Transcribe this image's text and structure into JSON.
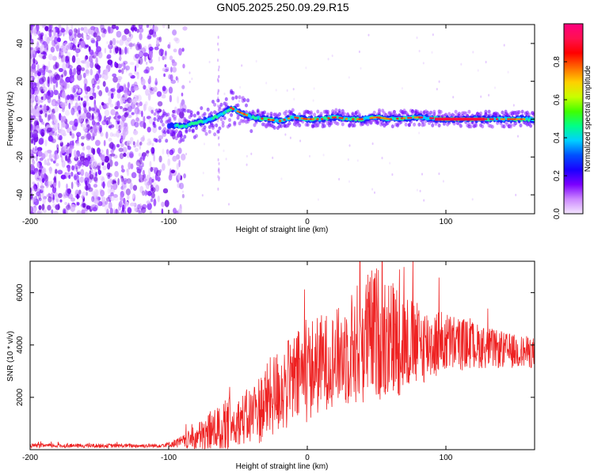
{
  "title": "GN05.2025.250.09.29.R15",
  "chart_data": [
    {
      "type": "heatmap",
      "name": "spectrogram",
      "xlabel": "Height of straight line (km)",
      "ylabel": "Frequency (Hz)",
      "xlim": [
        -200,
        164
      ],
      "ylim": [
        -50,
        50
      ],
      "xticks": [
        -200,
        -100,
        0,
        100
      ],
      "yticks": [
        -40,
        -20,
        0,
        20,
        40
      ],
      "colorbar": {
        "label": "Normalized spectral amplitude",
        "range": [
          0,
          1
        ],
        "ticks": [
          "0.0",
          "0.2",
          "0.4",
          "0.6",
          "0.8"
        ],
        "tick_values": [
          0.0,
          0.2,
          0.4,
          0.6,
          0.8
        ],
        "colors": [
          "#f4e6ff",
          "#cc88ff",
          "#7b00ff",
          "#1a00ff",
          "#0050ff",
          "#00d0ff",
          "#00ff88",
          "#40ff00",
          "#c8ff00",
          "#ffd000",
          "#ff6a00",
          "#ff0000",
          "#ff1050",
          "#ff007f"
        ]
      },
      "signal_track": {
        "description": "frequency centroid vs height",
        "x": [
          -100,
          -90,
          -80,
          -70,
          -60,
          -55,
          -50,
          -40,
          -30,
          -20,
          -10,
          0,
          10,
          20,
          30,
          40,
          50,
          60,
          80,
          100,
          120,
          140,
          164
        ],
        "y": [
          -3,
          -4,
          -2,
          0,
          3,
          6,
          4,
          1,
          0,
          -1,
          1,
          0,
          0,
          1,
          0,
          0,
          1,
          0,
          1,
          0,
          0,
          0,
          0
        ]
      }
    },
    {
      "type": "line",
      "name": "snr",
      "xlabel": "Height of straight line (km)",
      "ylabel": "SNR (10 * v/v)",
      "xlim": [
        -200,
        164
      ],
      "ylim": [
        0,
        7200
      ],
      "xticks": [
        -200,
        -100,
        0,
        100
      ],
      "yticks": [
        2000,
        4000,
        6000
      ],
      "color": "#ee2222",
      "envelope": {
        "x": [
          -200,
          -110,
          -100,
          -90,
          -80,
          -70,
          -60,
          -50,
          -40,
          -30,
          -20,
          -10,
          0,
          10,
          20,
          30,
          40,
          50,
          60,
          70,
          80,
          100,
          120,
          140,
          164
        ],
        "mean": [
          150,
          150,
          200,
          300,
          450,
          700,
          900,
          1100,
          1300,
          1800,
          2300,
          2600,
          3000,
          3300,
          3500,
          3800,
          4200,
          4500,
          4300,
          4100,
          4000,
          4100,
          4000,
          3800,
          3700
        ],
        "amplitude": [
          80,
          80,
          100,
          250,
          500,
          900,
          1000,
          900,
          1200,
          1500,
          1700,
          1800,
          2000,
          1900,
          1800,
          2200,
          2500,
          2600,
          2400,
          2000,
          1600,
          1200,
          900,
          700,
          600
        ]
      }
    }
  ]
}
